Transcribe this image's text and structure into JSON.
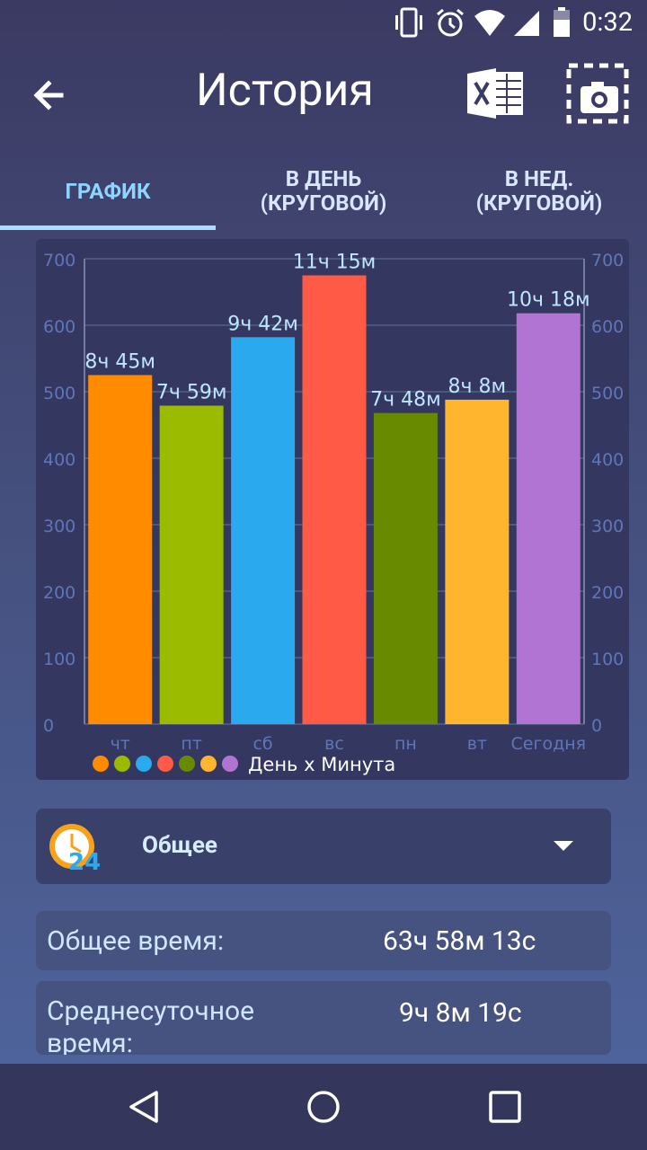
{
  "status_bar": {
    "time": "0:32",
    "icons": [
      "vibrate-icon",
      "alarm-icon",
      "wifi-icon",
      "signal-icon",
      "battery-icon"
    ]
  },
  "app_bar": {
    "title": "История",
    "back_icon": "arrow-left-icon",
    "excel_icon": "excel-export-icon",
    "screenshot_icon": "screenshot-camera-icon"
  },
  "tabs": [
    {
      "label": "ГРАФИК",
      "active": true
    },
    {
      "label": "В ДЕНЬ\n(КРУГОВОЙ)",
      "active": false
    },
    {
      "label": "В НЕД.\n(КРУГОВОЙ)",
      "active": false
    }
  ],
  "chart_data": {
    "type": "bar",
    "categories": [
      "чт",
      "пт",
      "сб",
      "вс",
      "пн",
      "вт",
      "Сегодня"
    ],
    "values": [
      525,
      479,
      582,
      675,
      468,
      488,
      618
    ],
    "data_labels": [
      "8ч 45м",
      "7ч 59м",
      "9ч 42м",
      "11ч 15м",
      "7ч 48м",
      "8ч 8м",
      "10ч 18м"
    ],
    "colors": [
      "#ff8c00",
      "#9bbb00",
      "#2aa9ee",
      "#ff5a45",
      "#678a00",
      "#ffb52e",
      "#b274d3"
    ],
    "ylim": [
      0,
      700
    ],
    "yticks": [
      0,
      100,
      200,
      300,
      400,
      500,
      600,
      700
    ],
    "legend": "День х Минута",
    "grid": true,
    "axis_color": "#5f76b8"
  },
  "category_select": {
    "icon": "clock-24-icon",
    "value": "Общее"
  },
  "stats": [
    {
      "label": "Общее время:",
      "value": "63ч 58м 13с"
    },
    {
      "label": "Среднесуточное время:",
      "value": "9ч 8м 19с"
    }
  ],
  "nav_bar": {
    "icons": [
      "back-triangle-icon",
      "home-circle-icon",
      "recents-square-icon"
    ]
  }
}
